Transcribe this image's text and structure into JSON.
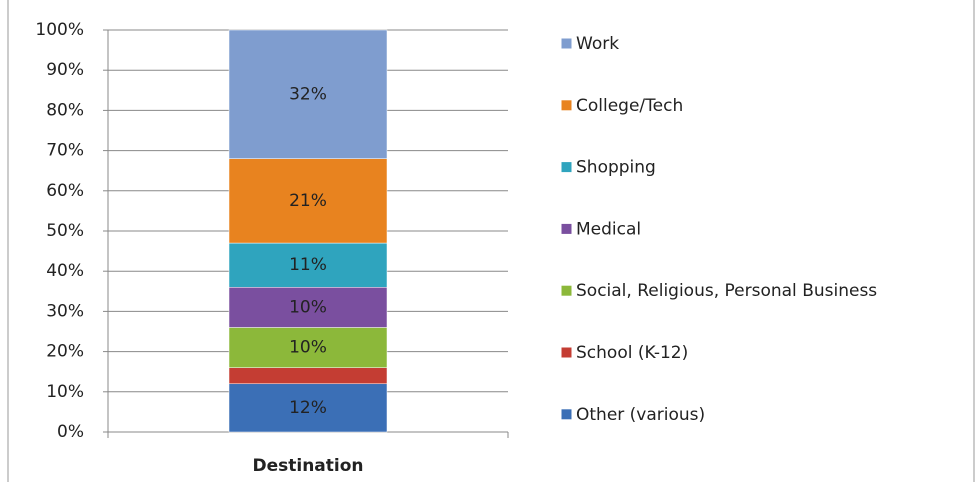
{
  "chart_data": {
    "type": "stacked-bar",
    "categories": [
      "Destination"
    ],
    "series": [
      {
        "name": "Other (various)",
        "color": "#3b6fb6",
        "values": [
          12
        ],
        "value_labels": [
          "12%"
        ]
      },
      {
        "name": "School (K-12)",
        "color": "#c43d33",
        "values": [
          4
        ],
        "value_labels": [
          null
        ]
      },
      {
        "name": "Social, Religious, Personal Business",
        "color": "#8cb83a",
        "values": [
          10
        ],
        "value_labels": [
          "10%"
        ]
      },
      {
        "name": "Medical",
        "color": "#7a4f9f",
        "values": [
          10
        ],
        "value_labels": [
          "10%"
        ]
      },
      {
        "name": "Shopping",
        "color": "#2fa4be",
        "values": [
          11
        ],
        "value_labels": [
          "11%"
        ]
      },
      {
        "name": "College/Tech",
        "color": "#e8831f",
        "values": [
          21
        ],
        "value_labels": [
          "21%"
        ]
      },
      {
        "name": "Work",
        "color": "#7f9dcf",
        "values": [
          32
        ],
        "value_labels": [
          "32%"
        ]
      }
    ],
    "ylim": [
      0,
      100
    ],
    "yticks": [
      {
        "value": 0,
        "label": "0%"
      },
      {
        "value": 10,
        "label": "10%"
      },
      {
        "value": 20,
        "label": "20%"
      },
      {
        "value": 30,
        "label": "30%"
      },
      {
        "value": 40,
        "label": "40%"
      },
      {
        "value": 50,
        "label": "50%"
      },
      {
        "value": 60,
        "label": "60%"
      },
      {
        "value": 70,
        "label": "70%"
      },
      {
        "value": 80,
        "label": "80%"
      },
      {
        "value": 90,
        "label": "90%"
      },
      {
        "value": 100,
        "label": "100%"
      }
    ],
    "grid": true,
    "legend": "right"
  }
}
